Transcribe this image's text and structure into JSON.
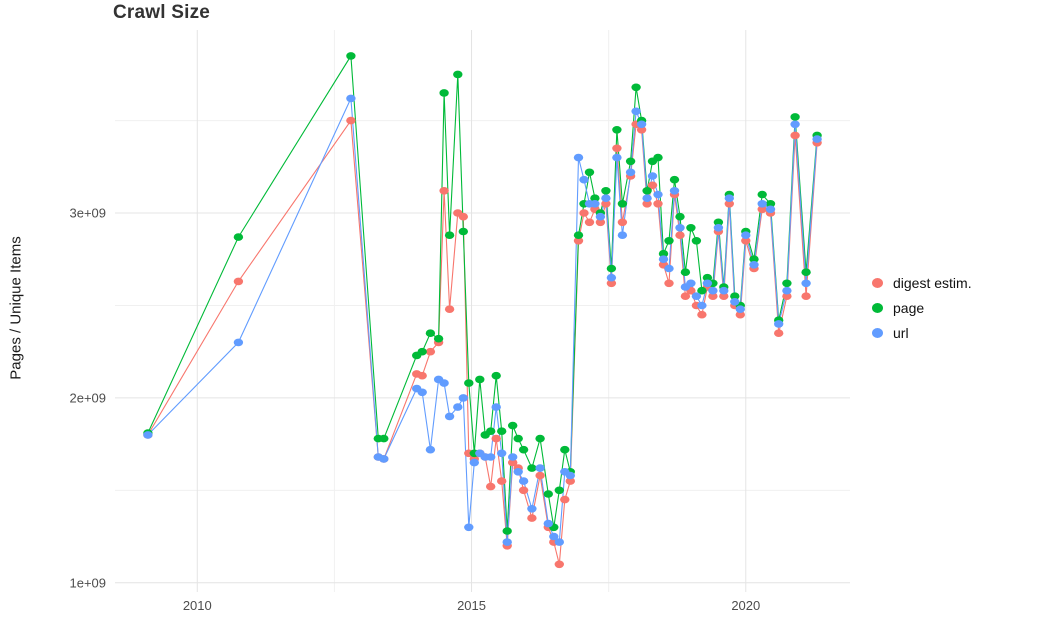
{
  "chart_data": {
    "type": "line",
    "title": "Crawl Size",
    "xlabel": "",
    "ylabel": "Pages / Unique Items",
    "y_unit": "pages (values in billions, i.e. ×1e9)",
    "grid": true,
    "legend_position": "right",
    "x_range": [
      2008.5,
      2021.9
    ],
    "y_range": [
      0.95,
      3.99
    ],
    "x_ticks": {
      "values": [
        2010,
        2015,
        2020
      ],
      "labels": [
        "2010",
        "2015",
        "2020"
      ]
    },
    "y_ticks": {
      "values": [
        1,
        2,
        3
      ],
      "labels": [
        "1e+09",
        "2e+09",
        "3e+09"
      ]
    },
    "x_minor_ticks": [
      2012.5,
      2017.5
    ],
    "y_minor_ticks": [
      1.5,
      2.5,
      3.5
    ],
    "x": [
      2009.1,
      2010.75,
      2012.8,
      2013.3,
      2013.4,
      2014.0,
      2014.1,
      2014.25,
      2014.4,
      2014.5,
      2014.6,
      2014.75,
      2014.85,
      2014.95,
      2015.05,
      2015.15,
      2015.25,
      2015.35,
      2015.45,
      2015.55,
      2015.65,
      2015.75,
      2015.85,
      2015.95,
      2016.1,
      2016.25,
      2016.4,
      2016.5,
      2016.6,
      2016.7,
      2016.8,
      2016.95,
      2017.05,
      2017.15,
      2017.25,
      2017.35,
      2017.45,
      2017.55,
      2017.65,
      2017.75,
      2017.9,
      2018.0,
      2018.1,
      2018.2,
      2018.3,
      2018.4,
      2018.5,
      2018.6,
      2018.7,
      2018.8,
      2018.9,
      2019.0,
      2019.1,
      2019.2,
      2019.3,
      2019.4,
      2019.5,
      2019.6,
      2019.7,
      2019.8,
      2019.9,
      2020.0,
      2020.15,
      2020.3,
      2020.45,
      2020.6,
      2020.75,
      2020.9,
      2021.1,
      2021.3
    ],
    "series": [
      {
        "name": "digest estim.",
        "color": "#F8766D",
        "values": [
          1.8,
          2.63,
          3.5,
          1.68,
          1.67,
          2.13,
          2.12,
          2.25,
          2.3,
          3.12,
          2.48,
          3.0,
          2.98,
          1.7,
          1.67,
          1.7,
          1.68,
          1.52,
          1.78,
          1.55,
          1.2,
          1.65,
          1.62,
          1.5,
          1.35,
          1.58,
          1.3,
          1.22,
          1.1,
          1.45,
          1.55,
          2.85,
          3.0,
          2.95,
          3.02,
          2.95,
          3.05,
          2.62,
          3.35,
          2.95,
          3.2,
          3.48,
          3.45,
          3.05,
          3.15,
          3.05,
          2.72,
          2.62,
          3.1,
          2.88,
          2.55,
          2.58,
          2.5,
          2.45,
          2.6,
          2.55,
          2.9,
          2.55,
          3.05,
          2.5,
          2.45,
          2.85,
          2.7,
          3.02,
          3.0,
          2.35,
          2.55,
          3.42,
          2.55,
          3.38
        ]
      },
      {
        "name": "page",
        "color": "#00BA38",
        "values": [
          1.81,
          2.87,
          3.85,
          1.78,
          1.78,
          2.23,
          2.25,
          2.35,
          2.32,
          3.65,
          2.88,
          3.75,
          2.9,
          2.08,
          1.7,
          2.1,
          1.8,
          1.82,
          2.12,
          1.82,
          1.28,
          1.85,
          1.78,
          1.72,
          1.62,
          1.78,
          1.48,
          1.3,
          1.5,
          1.72,
          1.6,
          2.88,
          3.05,
          3.22,
          3.08,
          3.0,
          3.12,
          2.7,
          3.45,
          3.05,
          3.28,
          3.68,
          3.5,
          3.12,
          3.28,
          3.3,
          2.78,
          2.85,
          3.18,
          2.98,
          2.68,
          2.92,
          2.85,
          2.58,
          2.65,
          2.62,
          2.95,
          2.6,
          3.1,
          2.55,
          2.5,
          2.9,
          2.75,
          3.1,
          3.05,
          2.42,
          2.62,
          3.52,
          2.68,
          3.42
        ]
      },
      {
        "name": "url",
        "color": "#619CFF",
        "values": [
          1.8,
          2.3,
          3.62,
          1.68,
          1.67,
          2.05,
          2.03,
          1.72,
          2.1,
          2.08,
          1.9,
          1.95,
          2.0,
          1.3,
          1.65,
          1.7,
          1.68,
          1.68,
          1.95,
          1.7,
          1.22,
          1.68,
          1.6,
          1.55,
          1.4,
          1.62,
          1.32,
          1.25,
          1.22,
          1.6,
          1.58,
          3.3,
          3.18,
          3.05,
          3.05,
          2.98,
          3.08,
          2.65,
          3.3,
          2.88,
          3.22,
          3.55,
          3.48,
          3.08,
          3.2,
          3.1,
          2.75,
          2.7,
          3.12,
          2.92,
          2.6,
          2.62,
          2.55,
          2.5,
          2.62,
          2.58,
          2.92,
          2.58,
          3.08,
          2.52,
          2.48,
          2.88,
          2.72,
          3.05,
          3.02,
          2.4,
          2.58,
          3.48,
          2.62,
          3.4
        ]
      }
    ]
  }
}
